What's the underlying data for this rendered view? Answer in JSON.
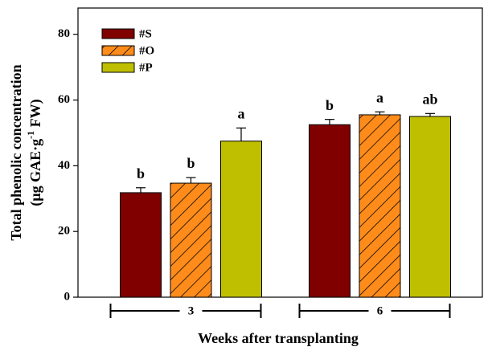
{
  "chart_data": {
    "type": "bar",
    "x_label": "Weeks after transplanting",
    "y_label": {
      "line1": "Total phenolic concentration",
      "line2_start": "(μg GAE·g",
      "line2_sup": "-1",
      "line2_end": " FW)"
    },
    "categories": [
      "3",
      "6"
    ],
    "series": [
      {
        "name": "#S",
        "color": "#800000",
        "pattern": "solid",
        "values": [
          31.8,
          52.5
        ],
        "errors": [
          1.5,
          1.6
        ],
        "labels": [
          "b",
          "b"
        ]
      },
      {
        "name": "#O",
        "color": "#ff8c1a",
        "pattern": "hatch",
        "values": [
          34.7,
          55.5
        ],
        "errors": [
          1.7,
          0.9
        ],
        "labels": [
          "b",
          "a"
        ]
      },
      {
        "name": "#P",
        "color": "#bfbf00",
        "pattern": "solid",
        "values": [
          47.5,
          55.0
        ],
        "errors": [
          4.0,
          0.9
        ],
        "labels": [
          "a",
          "ab"
        ]
      }
    ],
    "ylim": [
      0,
      88
    ],
    "yticks": [
      0,
      20,
      40,
      60,
      80
    ],
    "legend": "upper left"
  }
}
